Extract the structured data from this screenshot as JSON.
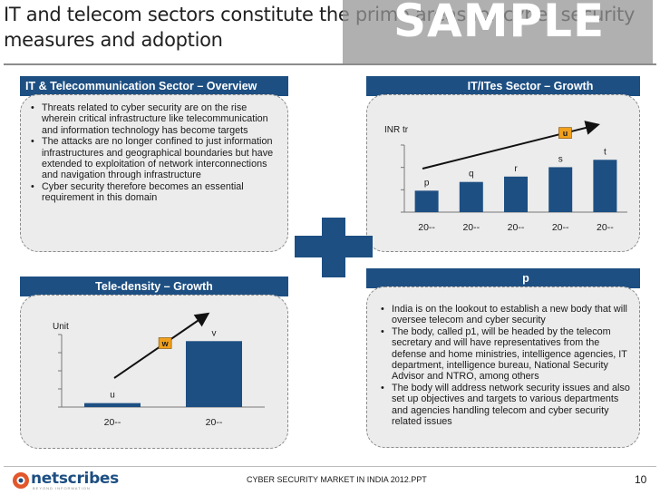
{
  "title": "IT and telecom sectors constitute the prime areas for cyber security measures and adoption",
  "watermark": "SAMPLE",
  "left_top": {
    "header": "IT & Telecommunication Sector – Overview",
    "bullets": [
      "Threats related to cyber security are on the rise wherein critical infrastructure like telecommunication and information technology has become targets",
      "The attacks are no longer confined to just information infrastructures and geographical boundaries but have extended to exploitation of network interconnections and navigation through infrastructure",
      "Cyber security therefore becomes an essential requirement in this domain"
    ]
  },
  "right_top": {
    "header": "IT/ITes Sector – Growth",
    "chart_data": {
      "type": "bar",
      "ylabel": "INR tr",
      "categories": [
        "20--",
        "20--",
        "20--",
        "20--",
        "20--"
      ],
      "values": [
        0.32,
        0.45,
        0.53,
        0.67,
        0.78
      ],
      "data_labels": [
        "p",
        "q",
        "r",
        "s",
        "t"
      ],
      "growth_badge": "u",
      "ylim": [
        0,
        1
      ],
      "bar_color": "#1d4f82"
    }
  },
  "left_bottom": {
    "header": "Tele-density – Growth",
    "chart_data": {
      "type": "bar",
      "ylabel": "Unit",
      "categories": [
        "20--",
        "20--"
      ],
      "values": [
        0.06,
        1.0
      ],
      "data_labels": [
        "u",
        "v"
      ],
      "growth_badge": "w",
      "ylim": [
        0,
        1.1
      ],
      "bar_color": "#1d4f82"
    }
  },
  "right_bottom": {
    "header": "p",
    "bullets": [
      "India is on the lookout to establish a new body that will oversee telecom and cyber security",
      "The body, called p1, will be headed by the telecom secretary and will have representatives from the defense and home ministries, intelligence agencies, IT department, intelligence bureau, National Security Advisor and NTRO, among others",
      "The body will address network security issues and also set up objectives and targets to various departments and agencies handling telecom and cyber security related issues"
    ]
  },
  "footer": {
    "logo_text": "netscribes",
    "logo_tagline": "BEYOND INFORMATION",
    "center_text": "CYBER SECURITY MARKET IN INDIA 2012.PPT",
    "page_number": "10"
  },
  "colors": {
    "header_blue": "#1d4f82",
    "panel_grey": "#ececec",
    "badge_orange": "#f0a01c",
    "plus_blue": "#1d4f82"
  }
}
